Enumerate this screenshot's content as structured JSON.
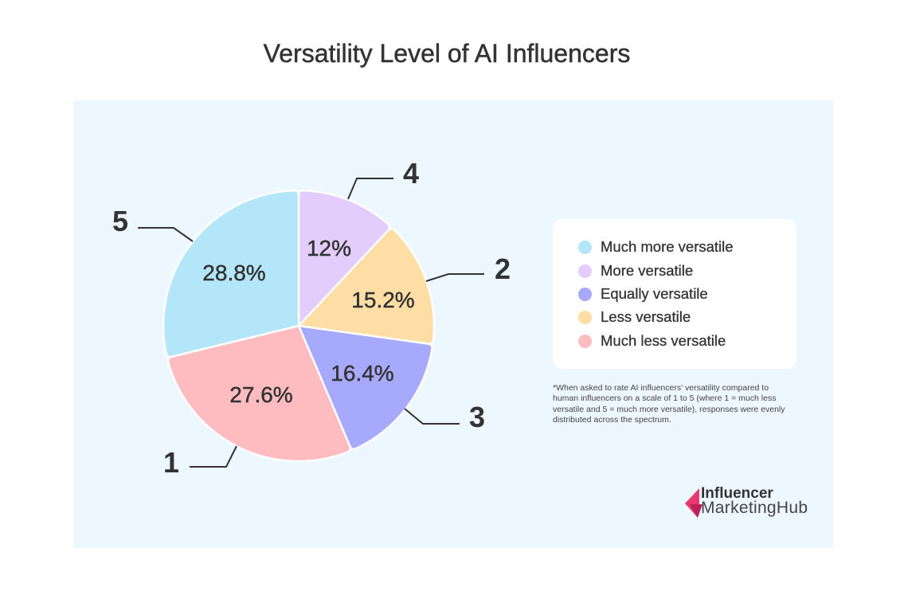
{
  "title": "Versatility Level of AI Influencers",
  "chart_data": {
    "type": "pie",
    "title": "Versatility Level of AI Influencers",
    "start_angle_deg": 0,
    "direction": "clockwise",
    "categories": [
      "More versatile",
      "Less versatile",
      "Equally versatile",
      "Much less versatile",
      "Much more versatile"
    ],
    "values": [
      12,
      15.2,
      16.4,
      27.6,
      28.8
    ],
    "unit": "%",
    "slices": [
      {
        "rating": "4",
        "label": "More versatile",
        "value": 12,
        "display": "12%",
        "color": "#e2cdfd"
      },
      {
        "rating": "2",
        "label": "Less versatile",
        "value": 15.2,
        "display": "15.2%",
        "color": "#ffdea5"
      },
      {
        "rating": "3",
        "label": "Equally versatile",
        "value": 16.4,
        "display": "16.4%",
        "color": "#a7a9fd"
      },
      {
        "rating": "1",
        "label": "Much less versatile",
        "value": 27.6,
        "display": "27.6%",
        "color": "#ffbcc0"
      },
      {
        "rating": "5",
        "label": "Much more versatile",
        "value": 28.8,
        "display": "28.8%",
        "color": "#b3e6f8"
      }
    ],
    "legend": {
      "position": "right",
      "entries": [
        {
          "label": "Much more versatile",
          "color": "#b3e6f8"
        },
        {
          "label": "More versatile",
          "color": "#e2cdfd"
        },
        {
          "label": "Equally versatile",
          "color": "#a7a9fd"
        },
        {
          "label": "Less versatile",
          "color": "#ffdea5"
        },
        {
          "label": "Much less versatile",
          "color": "#ffbcc0"
        }
      ]
    }
  },
  "footnote": {
    "lines": [
      "*When asked to rate AI influencers' versatility compared to",
      "human influencers on a scale of 1 to 5 (where 1 = much less",
      "versatile and 5 = much more versatile), responses were evenly",
      "distributed across the spectrum."
    ]
  },
  "logo": {
    "line1": "Influencer",
    "line2": "MarketingHub",
    "colors": {
      "primary": "#e8386d",
      "secondary": "#b8245a"
    }
  }
}
